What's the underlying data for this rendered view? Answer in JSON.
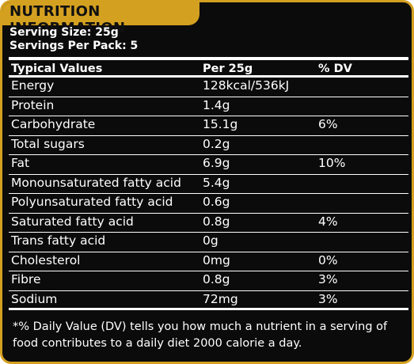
{
  "title": "NUTRITION INFORMATION",
  "serving_size": "Serving Size: 25g",
  "servings_per_pack": "Servings Per Pack: 5",
  "colors": {
    "accent": "#d4a020",
    "background": "#0b0b0b",
    "text": "#ffffff"
  },
  "table": {
    "headers": [
      "Typical Values",
      "Per 25g",
      "% DV"
    ],
    "rows": [
      [
        "Energy",
        "128kcal/536kJ",
        ""
      ],
      [
        "Protein",
        "1.4g",
        ""
      ],
      [
        "Carbohydrate",
        "15.1g",
        "6%"
      ],
      [
        "Total sugars",
        "0.2g",
        ""
      ],
      [
        "Fat",
        "6.9g",
        "10%"
      ],
      [
        "Monounsaturated fatty acid",
        "5.4g",
        ""
      ],
      [
        "Polyunsaturated fatty acid",
        "0.6g",
        ""
      ],
      [
        "Saturated fatty acid",
        "0.8g",
        "4%"
      ],
      [
        "Trans fatty acid",
        "0g",
        ""
      ],
      [
        "Cholesterol",
        "0mg",
        "0%"
      ],
      [
        "Fibre",
        "0.8g",
        "3%"
      ],
      [
        "Sodium",
        "72mg",
        "3%"
      ]
    ]
  },
  "footnote": "*% Daily Value (DV) tells you how much a nutrient in a serving of food contributes to a daily diet 2000 calorie a day."
}
